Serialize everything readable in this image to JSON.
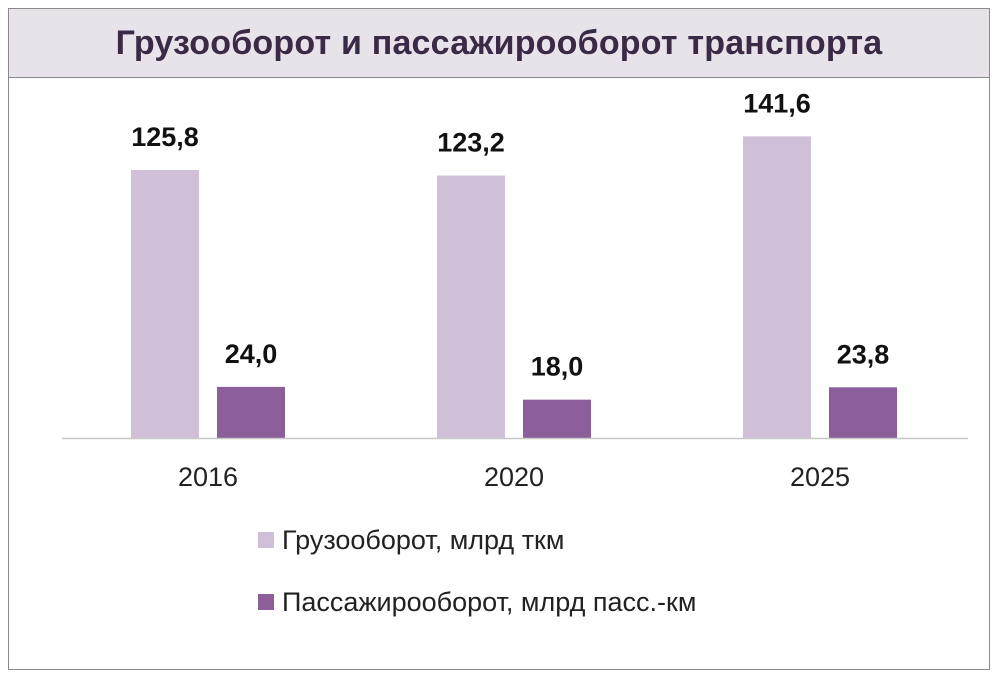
{
  "chart_data": {
    "type": "bar",
    "title": "Грузооборот и пассажирооборот транспорта",
    "categories": [
      "2016",
      "2020",
      "2025"
    ],
    "series": [
      {
        "name": "Грузооборот, млрд ткм",
        "values": [
          125.8,
          123.2,
          141.6
        ],
        "labels": [
          "125,8",
          "123,2",
          "141,6"
        ],
        "color": "#cfc0d7"
      },
      {
        "name": "Пассажирооборот, млрд пасс.-км",
        "values": [
          24.0,
          18.0,
          23.8
        ],
        "labels": [
          "24,0",
          "18,0",
          "23,8"
        ],
        "color": "#8c5f9a"
      }
    ],
    "ylim": [
      0,
      150
    ],
    "grid": false,
    "legend_position": "bottom",
    "axis_color": "#c8c8c8"
  }
}
